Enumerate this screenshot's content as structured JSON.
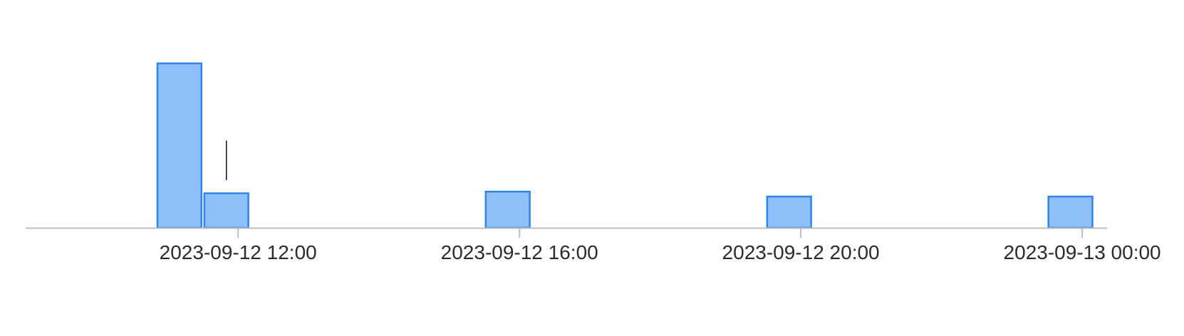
{
  "chart_data": {
    "type": "bar",
    "title": "",
    "xlabel": "",
    "ylabel": "",
    "x_axis_type": "time",
    "grid": false,
    "legend": "none",
    "bar_color": "#8fbff8",
    "bar_border_color": "#2f86e8",
    "axis_color": "#bdbdbd",
    "tick_label_color": "#2b2b2b",
    "ylim": [
      0,
      100
    ],
    "xlim": [
      "2023-09-12 09:00",
      "2023-09-13 00:20"
    ],
    "x_ticks": [
      "2023-09-12 12:00",
      "2023-09-12 16:00",
      "2023-09-12 20:00",
      "2023-09-13 00:00"
    ],
    "bars": [
      {
        "x_start": "2023-09-12 10:50",
        "x_end": "2023-09-12 11:30",
        "value": 100
      },
      {
        "x_start": "2023-09-12 11:30",
        "x_end": "2023-09-12 12:10",
        "value": 21
      },
      {
        "x_start": "2023-09-12 15:30",
        "x_end": "2023-09-12 16:10",
        "value": 22
      },
      {
        "x_start": "2023-09-12 19:30",
        "x_end": "2023-09-12 20:10",
        "value": 19
      },
      {
        "x_start": "2023-09-12 23:30",
        "x_end": "2023-09-13 00:10",
        "value": 19
      }
    ],
    "marker": {
      "x": "2023-09-12 11:50",
      "y_range": [
        29,
        53
      ]
    }
  }
}
